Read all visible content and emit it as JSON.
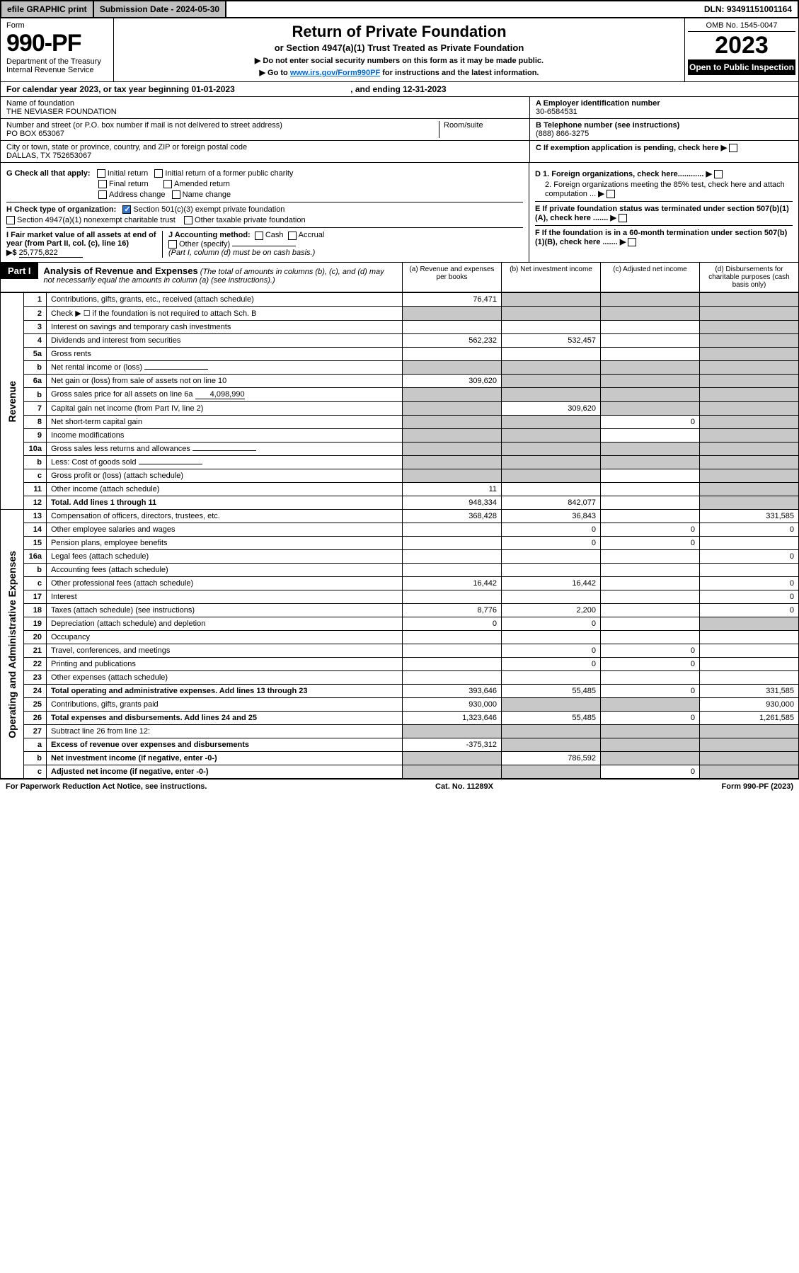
{
  "topbar": {
    "efile": "efile GRAPHIC print",
    "submission_label": "Submission Date - 2024-05-30",
    "dln": "DLN: 93491151001164"
  },
  "header": {
    "form_word": "Form",
    "form_no": "990-PF",
    "dept": "Department of the Treasury",
    "irs": "Internal Revenue Service",
    "title": "Return of Private Foundation",
    "subtitle": "or Section 4947(a)(1) Trust Treated as Private Foundation",
    "instr1": "▶ Do not enter social security numbers on this form as it may be made public.",
    "instr2_pre": "▶ Go to ",
    "instr2_link": "www.irs.gov/Form990PF",
    "instr2_post": " for instructions and the latest information.",
    "omb": "OMB No. 1545-0047",
    "year": "2023",
    "open": "Open to Public Inspection"
  },
  "band": {
    "calendar": "For calendar year 2023, or tax year beginning 01-01-2023",
    "ending": ", and ending 12-31-2023"
  },
  "info": {
    "name_label": "Name of foundation",
    "name": "THE NEVIASER FOUNDATION",
    "addr_label": "Number and street (or P.O. box number if mail is not delivered to street address)",
    "addr": "PO BOX 653067",
    "room_label": "Room/suite",
    "city_label": "City or town, state or province, country, and ZIP or foreign postal code",
    "city": "DALLAS, TX  752653067",
    "a_label": "A Employer identification number",
    "a_val": "30-6584531",
    "b_label": "B Telephone number (see instructions)",
    "b_val": "(888) 866-3275",
    "c_label": "C If exemption application is pending, check here"
  },
  "checks": {
    "g_label": "G Check all that apply:",
    "g_opts": [
      "Initial return",
      "Initial return of a former public charity",
      "Final return",
      "Amended return",
      "Address change",
      "Name change"
    ],
    "h_label": "H Check type of organization:",
    "h1": "Section 501(c)(3) exempt private foundation",
    "h2": "Section 4947(a)(1) nonexempt charitable trust",
    "h3": "Other taxable private foundation",
    "i_label": "I Fair market value of all assets at end of year (from Part II, col. (c), line 16)",
    "i_val": "25,775,822",
    "j_label": "J Accounting method:",
    "j_cash": "Cash",
    "j_accrual": "Accrual",
    "j_other": "Other (specify)",
    "j_note": "(Part I, column (d) must be on cash basis.)",
    "d1": "D 1. Foreign organizations, check here............",
    "d2": "2. Foreign organizations meeting the 85% test, check here and attach computation ...",
    "e": "E  If private foundation status was terminated under section 507(b)(1)(A), check here .......",
    "f": "F  If the foundation is in a 60-month termination under section 507(b)(1)(B), check here .......",
    "arrow": "▶",
    "dollar": "▶$"
  },
  "part1": {
    "label": "Part I",
    "title": "Analysis of Revenue and Expenses",
    "title_note": "(The total of amounts in columns (b), (c), and (d) may not necessarily equal the amounts in column (a) (see instructions).)",
    "col_a": "(a)   Revenue and expenses per books",
    "col_b": "(b)   Net investment income",
    "col_c": "(c)   Adjusted net income",
    "col_d": "(d)   Disbursements for charitable purposes (cash basis only)"
  },
  "side": {
    "revenue": "Revenue",
    "expenses": "Operating and Administrative Expenses"
  },
  "rows": [
    {
      "n": "1",
      "label": "Contributions, gifts, grants, etc., received (attach schedule)",
      "a": "76,471",
      "b": "",
      "c": "",
      "d": "",
      "shade": [
        "b",
        "c",
        "d"
      ]
    },
    {
      "n": "2",
      "label": "Check ▶ ☐ if the foundation is not required to attach Sch. B",
      "a": "",
      "b": "",
      "c": "",
      "d": "",
      "shade": [
        "a",
        "b",
        "c",
        "d"
      ],
      "nob": true
    },
    {
      "n": "3",
      "label": "Interest on savings and temporary cash investments",
      "a": "",
      "b": "",
      "c": "",
      "d": "",
      "shade": [
        "d"
      ]
    },
    {
      "n": "4",
      "label": "Dividends and interest from securities",
      "a": "562,232",
      "b": "532,457",
      "c": "",
      "d": "",
      "shade": [
        "d"
      ]
    },
    {
      "n": "5a",
      "label": "Gross rents",
      "a": "",
      "b": "",
      "c": "",
      "d": "",
      "shade": [
        "d"
      ]
    },
    {
      "n": "b",
      "label": "Net rental income or (loss)",
      "a": "",
      "b": "",
      "c": "",
      "d": "",
      "shade": [
        "a",
        "b",
        "c",
        "d"
      ],
      "inline": true
    },
    {
      "n": "6a",
      "label": "Net gain or (loss) from sale of assets not on line 10",
      "a": "309,620",
      "b": "",
      "c": "",
      "d": "",
      "shade": [
        "b",
        "c",
        "d"
      ]
    },
    {
      "n": "b",
      "label": "Gross sales price for all assets on line 6a",
      "a": "",
      "b": "",
      "c": "",
      "d": "",
      "shade": [
        "a",
        "b",
        "c",
        "d"
      ],
      "inline": true,
      "inline_val": "4,098,990"
    },
    {
      "n": "7",
      "label": "Capital gain net income (from Part IV, line 2)",
      "a": "",
      "b": "309,620",
      "c": "",
      "d": "",
      "shade": [
        "a",
        "c",
        "d"
      ]
    },
    {
      "n": "8",
      "label": "Net short-term capital gain",
      "a": "",
      "b": "",
      "c": "0",
      "d": "",
      "shade": [
        "a",
        "b",
        "d"
      ]
    },
    {
      "n": "9",
      "label": "Income modifications",
      "a": "",
      "b": "",
      "c": "",
      "d": "",
      "shade": [
        "a",
        "b",
        "d"
      ]
    },
    {
      "n": "10a",
      "label": "Gross sales less returns and allowances",
      "a": "",
      "b": "",
      "c": "",
      "d": "",
      "shade": [
        "a",
        "b",
        "c",
        "d"
      ],
      "inline": true
    },
    {
      "n": "b",
      "label": "Less: Cost of goods sold",
      "a": "",
      "b": "",
      "c": "",
      "d": "",
      "shade": [
        "a",
        "b",
        "c",
        "d"
      ],
      "inline": true
    },
    {
      "n": "c",
      "label": "Gross profit or (loss) (attach schedule)",
      "a": "",
      "b": "",
      "c": "",
      "d": "",
      "shade": [
        "a",
        "b",
        "d"
      ]
    },
    {
      "n": "11",
      "label": "Other income (attach schedule)",
      "a": "11",
      "b": "",
      "c": "",
      "d": "",
      "shade": [
        "d"
      ]
    },
    {
      "n": "12",
      "label": "Total. Add lines 1 through 11",
      "a": "948,334",
      "b": "842,077",
      "c": "",
      "d": "",
      "shade": [
        "d"
      ],
      "bold": true
    }
  ],
  "exp_rows": [
    {
      "n": "13",
      "label": "Compensation of officers, directors, trustees, etc.",
      "a": "368,428",
      "b": "36,843",
      "c": "",
      "d": "331,585"
    },
    {
      "n": "14",
      "label": "Other employee salaries and wages",
      "a": "",
      "b": "0",
      "c": "0",
      "d": "0"
    },
    {
      "n": "15",
      "label": "Pension plans, employee benefits",
      "a": "",
      "b": "0",
      "c": "0",
      "d": ""
    },
    {
      "n": "16a",
      "label": "Legal fees (attach schedule)",
      "a": "",
      "b": "",
      "c": "",
      "d": "0"
    },
    {
      "n": "b",
      "label": "Accounting fees (attach schedule)",
      "a": "",
      "b": "",
      "c": "",
      "d": ""
    },
    {
      "n": "c",
      "label": "Other professional fees (attach schedule)",
      "a": "16,442",
      "b": "16,442",
      "c": "",
      "d": "0"
    },
    {
      "n": "17",
      "label": "Interest",
      "a": "",
      "b": "",
      "c": "",
      "d": "0"
    },
    {
      "n": "18",
      "label": "Taxes (attach schedule) (see instructions)",
      "a": "8,776",
      "b": "2,200",
      "c": "",
      "d": "0"
    },
    {
      "n": "19",
      "label": "Depreciation (attach schedule) and depletion",
      "a": "0",
      "b": "0",
      "c": "",
      "d": "",
      "shade": [
        "d"
      ]
    },
    {
      "n": "20",
      "label": "Occupancy",
      "a": "",
      "b": "",
      "c": "",
      "d": ""
    },
    {
      "n": "21",
      "label": "Travel, conferences, and meetings",
      "a": "",
      "b": "0",
      "c": "0",
      "d": ""
    },
    {
      "n": "22",
      "label": "Printing and publications",
      "a": "",
      "b": "0",
      "c": "0",
      "d": ""
    },
    {
      "n": "23",
      "label": "Other expenses (attach schedule)",
      "a": "",
      "b": "",
      "c": "",
      "d": ""
    },
    {
      "n": "24",
      "label": "Total operating and administrative expenses. Add lines 13 through 23",
      "a": "393,646",
      "b": "55,485",
      "c": "0",
      "d": "331,585",
      "bold": true
    },
    {
      "n": "25",
      "label": "Contributions, gifts, grants paid",
      "a": "930,000",
      "b": "",
      "c": "",
      "d": "930,000",
      "shade": [
        "b",
        "c"
      ]
    },
    {
      "n": "26",
      "label": "Total expenses and disbursements. Add lines 24 and 25",
      "a": "1,323,646",
      "b": "55,485",
      "c": "0",
      "d": "1,261,585",
      "bold": true
    },
    {
      "n": "27",
      "label": "Subtract line 26 from line 12:",
      "a": "",
      "b": "",
      "c": "",
      "d": "",
      "shade": [
        "a",
        "b",
        "c",
        "d"
      ]
    },
    {
      "n": "a",
      "label": "Excess of revenue over expenses and disbursements",
      "a": "-375,312",
      "b": "",
      "c": "",
      "d": "",
      "shade": [
        "b",
        "c",
        "d"
      ],
      "bold": true
    },
    {
      "n": "b",
      "label": "Net investment income (if negative, enter -0-)",
      "a": "",
      "b": "786,592",
      "c": "",
      "d": "",
      "shade": [
        "a",
        "c",
        "d"
      ],
      "bold": true
    },
    {
      "n": "c",
      "label": "Adjusted net income (if negative, enter -0-)",
      "a": "",
      "b": "",
      "c": "0",
      "d": "",
      "shade": [
        "a",
        "b",
        "d"
      ],
      "bold": true
    }
  ],
  "footer": {
    "left": "For Paperwork Reduction Act Notice, see instructions.",
    "mid": "Cat. No. 11289X",
    "right": "Form 990-PF (2023)"
  }
}
